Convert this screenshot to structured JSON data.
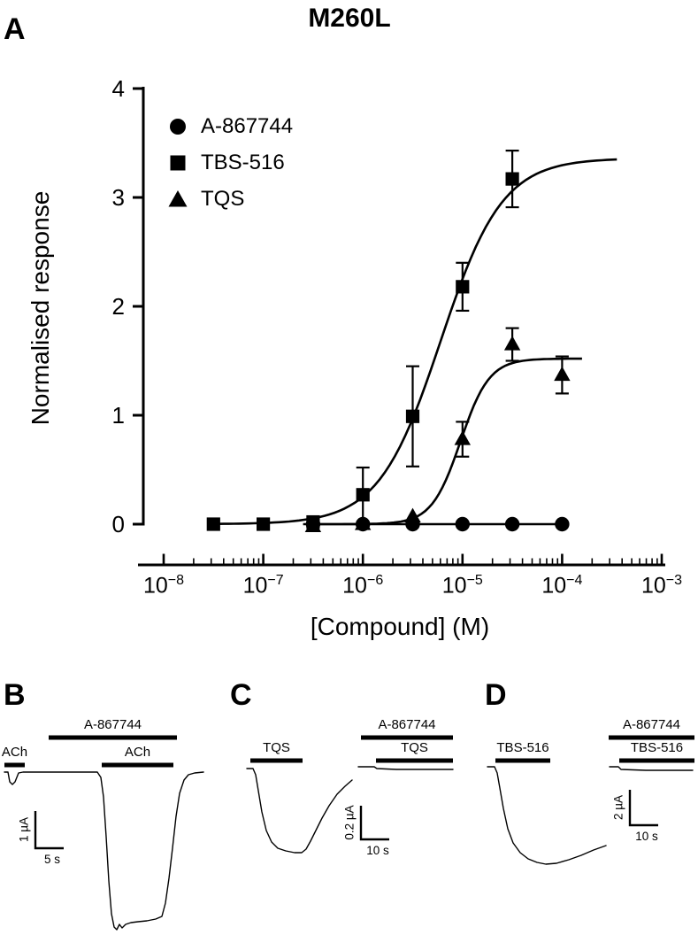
{
  "colors": {
    "foreground": "#000000",
    "background": "#ffffff"
  },
  "panels": {
    "A": {
      "label": "A"
    },
    "B": {
      "label": "B"
    },
    "C": {
      "label": "C"
    },
    "D": {
      "label": "D"
    }
  },
  "chart_data": [
    {
      "type": "scatter",
      "panel": "A",
      "title": "M260L",
      "xlabel": "[Compound] (M)",
      "ylabel": "Normalised response",
      "x_scale": "log10",
      "xlim_log10": [
        -8,
        -3
      ],
      "ylim": [
        0,
        4
      ],
      "x_tick_exponents": [
        -8,
        -7,
        -6,
        -5,
        -4,
        -3
      ],
      "y_ticks": [
        0,
        1,
        2,
        3,
        4
      ],
      "grid": false,
      "legend_position": "inside-top-left",
      "series": [
        {
          "name": "A-867744",
          "marker": "circle",
          "points": {
            "x_log10": [
              -6.5,
              -6,
              -5.5,
              -5,
              -4.5,
              -4
            ],
            "y": [
              0,
              0,
              0,
              0,
              0,
              0
            ],
            "y_err": [
              0,
              0,
              0,
              0,
              0,
              0
            ]
          },
          "fit": {
            "flat": true,
            "y": 0,
            "range_log10": [
              -6.5,
              -4
            ]
          }
        },
        {
          "name": "TBS-516",
          "marker": "square",
          "points": {
            "x_log10": [
              -7.5,
              -7,
              -6.5,
              -6,
              -5.5,
              -5,
              -4.5
            ],
            "y": [
              0,
              0,
              0.02,
              0.27,
              0.99,
              2.18,
              3.17
            ],
            "y_err": [
              0,
              0,
              0,
              0.25,
              0.46,
              0.22,
              0.26
            ]
          },
          "fit": {
            "bottom": 0,
            "top": 3.36,
            "logEC50": -5.22,
            "hill": 1.4,
            "range_log10": [
              -7.5,
              -3.45
            ]
          }
        },
        {
          "name": "TQS",
          "marker": "triangle",
          "points": {
            "x_log10": [
              -6.5,
              -6,
              -5.5,
              -5,
              -4.5,
              -4
            ],
            "y": [
              -0.02,
              0,
              0.07,
              0.78,
              1.65,
              1.37
            ],
            "y_err": [
              0,
              0,
              0,
              0.16,
              0.15,
              0.17
            ]
          },
          "fit": {
            "bottom": 0,
            "top": 1.52,
            "logEC50": -5.02,
            "hill": 3.0,
            "range_log10": [
              -6.6,
              -3.8
            ]
          }
        }
      ]
    },
    {
      "type": "trace",
      "panel": "B",
      "applications": [
        {
          "label": "ACh",
          "x1": 5,
          "x2": 28,
          "y": 864
        },
        {
          "label": "A-867744",
          "x1": 55,
          "x2": 200,
          "y": 833
        },
        {
          "label": "ACh",
          "x1": 115,
          "x2": 196,
          "y": 864
        }
      ],
      "scale_bar": {
        "x": 40,
        "y1": 916,
        "y2": 958,
        "h_len": 32,
        "v_label": "1 µA",
        "h_label": "5 s"
      },
      "segments": [
        [
          [
            5,
            872
          ],
          [
            9,
            872
          ],
          [
            11,
            883
          ],
          [
            14,
            886
          ],
          [
            17,
            883
          ],
          [
            21,
            873
          ],
          [
            26,
            872
          ],
          [
            110,
            872
          ],
          [
            114,
            878
          ],
          [
            117,
            900
          ],
          [
            120,
            945
          ],
          [
            123,
            995
          ],
          [
            126,
            1032
          ],
          [
            129,
            1047
          ],
          [
            132,
            1050
          ],
          [
            135,
            1044
          ],
          [
            138,
            1048
          ],
          [
            142,
            1044
          ],
          [
            148,
            1042
          ],
          [
            156,
            1041
          ],
          [
            166,
            1040
          ],
          [
            176,
            1038
          ],
          [
            183,
            1035
          ],
          [
            187,
            1020
          ],
          [
            191,
            992
          ],
          [
            195,
            958
          ],
          [
            199,
            922
          ],
          [
            203,
            896
          ],
          [
            208,
            881
          ],
          [
            213,
            875
          ],
          [
            220,
            873
          ],
          [
            230,
            872
          ]
        ]
      ]
    },
    {
      "type": "trace",
      "panel": "C",
      "applications": [
        {
          "label": "TQS",
          "x1": 283,
          "x2": 342,
          "y": 859
        },
        {
          "label": "A-867744",
          "x1": 408,
          "x2": 512,
          "y": 833
        },
        {
          "label": "TQS",
          "x1": 425,
          "x2": 512,
          "y": 859
        }
      ],
      "scale_bar": {
        "x": 408,
        "y1": 910,
        "y2": 948,
        "h_len": 32,
        "v_label": "0.2 µA",
        "h_label": "10 s"
      },
      "segments": [
        [
          [
            279,
            868
          ],
          [
            286,
            868
          ],
          [
            289,
            875
          ],
          [
            292,
            893
          ],
          [
            296,
            917
          ],
          [
            301,
            938
          ],
          [
            307,
            951
          ],
          [
            314,
            958
          ],
          [
            323,
            961
          ],
          [
            333,
            963
          ],
          [
            341,
            963
          ],
          [
            346,
            959
          ],
          [
            351,
            950
          ],
          [
            357,
            938
          ],
          [
            364,
            924
          ],
          [
            372,
            910
          ],
          [
            381,
            897
          ],
          [
            390,
            888
          ],
          [
            398,
            881
          ]
        ],
        [
          [
            405,
            866
          ],
          [
            423,
            866
          ],
          [
            426,
            868
          ],
          [
            448,
            869
          ],
          [
            480,
            869
          ],
          [
            512,
            869
          ]
        ]
      ]
    },
    {
      "type": "trace",
      "panel": "D",
      "applications": [
        {
          "label": "TBS-516",
          "x1": 560,
          "x2": 622,
          "y": 859
        },
        {
          "label": "A-867744",
          "x1": 688,
          "x2": 785,
          "y": 833
        },
        {
          "label": "TBS-516",
          "x1": 700,
          "x2": 785,
          "y": 859
        }
      ],
      "scale_bar": {
        "x": 712,
        "y1": 892,
        "y2": 932,
        "h_len": 32,
        "v_label": "2 µA",
        "h_label": "10 s"
      },
      "segments": [
        [
          [
            551,
            866
          ],
          [
            559,
            866
          ],
          [
            562,
            873
          ],
          [
            565,
            890
          ],
          [
            569,
            913
          ],
          [
            574,
            936
          ],
          [
            580,
            952
          ],
          [
            588,
            963
          ],
          [
            597,
            970
          ],
          [
            607,
            974
          ],
          [
            617,
            976
          ],
          [
            629,
            975
          ],
          [
            643,
            971
          ],
          [
            657,
            966
          ],
          [
            671,
            960
          ],
          [
            685,
            955
          ]
        ],
        [
          [
            689,
            866
          ],
          [
            699,
            866
          ],
          [
            702,
            869
          ],
          [
            730,
            870
          ],
          [
            783,
            870
          ]
        ]
      ]
    }
  ]
}
